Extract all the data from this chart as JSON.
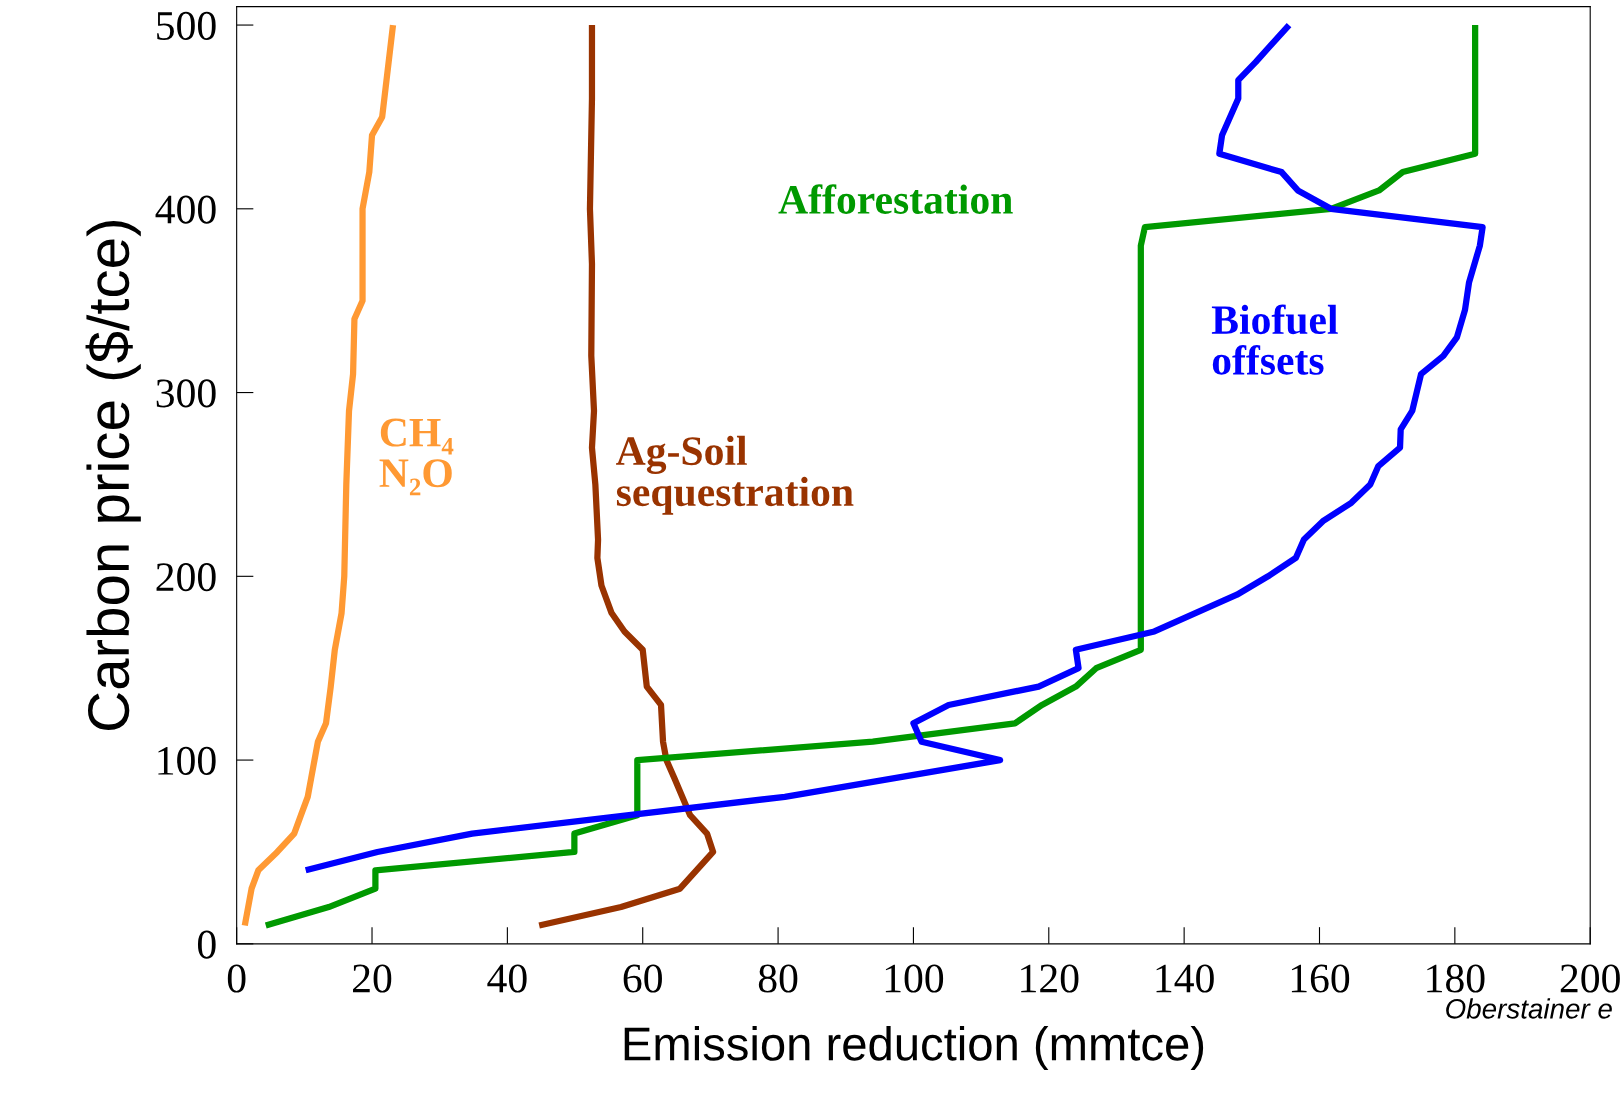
{
  "chart_data": {
    "type": "line",
    "xlabel": "Emission reduction (mmtce)",
    "ylabel": "Carbon price ($/tce)",
    "xlim": [
      0,
      200
    ],
    "ylim": [
      0,
      510
    ],
    "xticks": [
      0,
      20,
      40,
      60,
      80,
      100,
      120,
      140,
      160,
      180,
      200
    ],
    "yticks": [
      0,
      100,
      200,
      300,
      400,
      500
    ],
    "grid": false,
    "legend": false,
    "marker": "none",
    "line_style": "solid",
    "annotations": [
      "Oberstainer e"
    ],
    "series": [
      {
        "name": "CH₄\nN₂O",
        "color": "#ff9933",
        "x": [
          1.2,
          2.2,
          3.2,
          6,
          8.5,
          9.5,
          10.5,
          11,
          11.5,
          12,
          13.2,
          13.9,
          14.5,
          15.5,
          15.9,
          16.2,
          16.6,
          17.2,
          17.4,
          18.6,
          18.6,
          19.6,
          20,
          21.5,
          23.1
        ],
        "values": [
          10,
          30,
          40,
          50,
          60,
          70,
          80,
          90,
          100,
          110,
          120,
          140,
          160,
          180,
          200,
          250,
          290,
          310,
          340,
          350,
          400,
          420,
          440,
          450,
          500
        ]
      },
      {
        "name": "Ag-Soil\nsequestration",
        "color": "#993300",
        "x": [
          44.7,
          56.8,
          65.5,
          70.4,
          69.5,
          67,
          64.7,
          63.5,
          63,
          62.7,
          60.6,
          60,
          57.3,
          55.4,
          53.9,
          53.3,
          53.4,
          53,
          52.5,
          52.8,
          52.4,
          52.5,
          52.2,
          52.5,
          52.5
        ],
        "values": [
          10,
          20,
          30,
          50,
          60,
          70,
          90,
          100,
          110,
          130,
          140,
          160,
          170,
          180,
          195,
          210,
          220,
          250,
          270,
          290,
          320,
          370,
          400,
          460,
          500
        ]
      },
      {
        "name": "Afforestation",
        "color": "#009900",
        "x": [
          4.3,
          13.6,
          20.5,
          20.5,
          49.9,
          49.9,
          59.2,
          59.2,
          94,
          115,
          119,
          124,
          127,
          133.6,
          133.6,
          134.2,
          161.7,
          168.8,
          172.3,
          183,
          183
        ],
        "values": [
          10,
          20,
          30,
          40,
          50,
          60,
          70,
          100,
          110,
          120,
          130,
          140,
          150,
          160,
          380,
          390,
          400,
          410,
          420,
          430,
          500
        ]
      },
      {
        "name": "Biofuel\noffsets",
        "color": "#0000ff",
        "x": [
          10.2,
          20.8,
          34.8,
          81,
          112.8,
          101.2,
          100,
          105.2,
          118.5,
          124.4,
          124,
          135.6,
          147.8,
          152.4,
          156.5,
          157.7,
          160.5,
          164.7,
          167.5,
          168.7,
          171.9,
          172,
          173.7,
          175,
          178.3,
          180.3,
          181.5,
          182.1,
          183.7,
          184.1,
          161.7,
          156.8,
          154.4,
          145.2,
          145.6,
          148,
          148,
          150.6,
          155.5
        ],
        "values": [
          40,
          50,
          60,
          80,
          100,
          110,
          120,
          130,
          140,
          150,
          160,
          170,
          190,
          200,
          210,
          220,
          230,
          240,
          250,
          260,
          270,
          280,
          290,
          310,
          320,
          330,
          345,
          360,
          380,
          390,
          400,
          410,
          420,
          430,
          440,
          460,
          470,
          480,
          500
        ]
      }
    ]
  }
}
